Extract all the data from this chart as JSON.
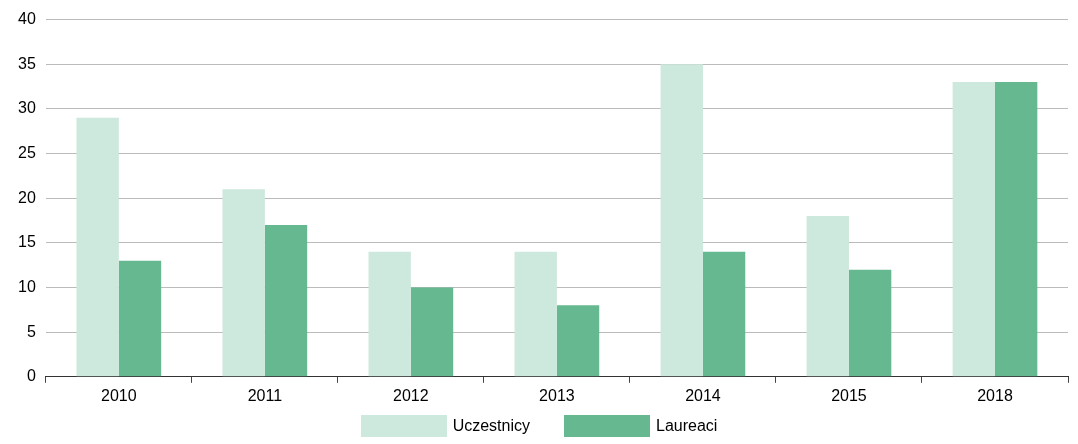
{
  "chart_data": {
    "type": "bar",
    "categories": [
      "2010",
      "2011",
      "2012",
      "2013",
      "2014",
      "2015",
      "2018"
    ],
    "series": [
      {
        "name": "Uczestnicy",
        "color": "#cde8dc",
        "values": [
          29,
          21,
          14,
          14,
          35,
          18,
          33
        ]
      },
      {
        "name": "Laureaci",
        "color": "#66b890",
        "values": [
          13,
          17,
          10,
          8,
          14,
          12,
          33
        ]
      }
    ],
    "ylim": [
      0,
      40
    ],
    "yticks": [
      0,
      5,
      10,
      15,
      20,
      25,
      30,
      35,
      40
    ],
    "grid": "y",
    "legend": "bottom"
  }
}
